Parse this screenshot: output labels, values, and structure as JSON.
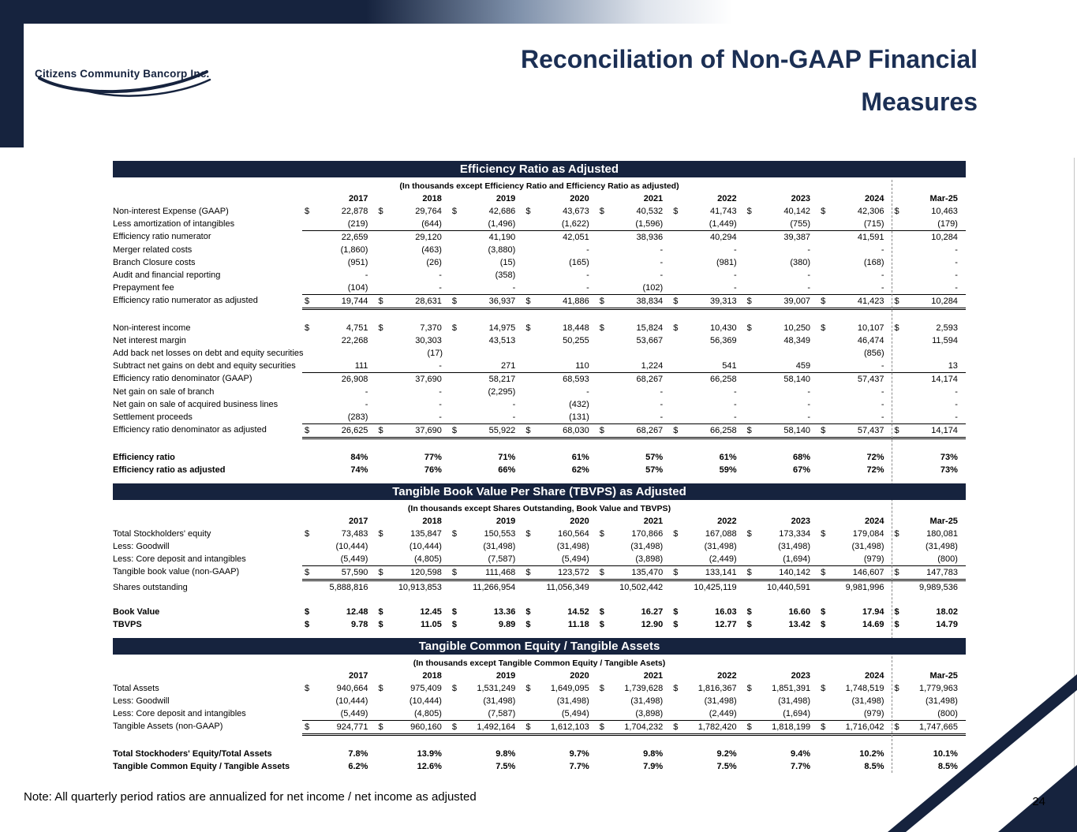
{
  "slide": {
    "logo_text": "Citizens Community Bancorp Inc.",
    "title_line1": "Reconciliation of Non-GAAP Financial",
    "title_line2": "Measures",
    "note": "Note: All quarterly period ratios are annualized for net income / net income as adjusted",
    "page_number": "24"
  },
  "colors": {
    "navy": "#16233E",
    "title_navy": "#1B2F54",
    "dash_gray": "#8A8A8A"
  },
  "tables": [
    {
      "title": "Efficiency Ratio as Adjusted",
      "subtitle": "(In thousands except Efficiency Ratio and Efficiency Ratio as adjusted)",
      "columns": [
        "2017",
        "2018",
        "2019",
        "2020",
        "2021",
        "2022",
        "2023",
        "2024",
        "Mar-25"
      ],
      "rows": [
        {
          "label": "Non-interest Expense (GAAP)",
          "dollar": true,
          "style": "plain",
          "values": [
            "22,878",
            "29,764",
            "42,686",
            "43,673",
            "40,532",
            "41,743",
            "40,142",
            "42,306",
            "10,463"
          ]
        },
        {
          "label": "Less amortization of intangibles",
          "style": "plain",
          "values": [
            "(219)",
            "(644)",
            "(1,496)",
            "(1,622)",
            "(1,596)",
            "(1,449)",
            "(755)",
            "(715)",
            "(179)"
          ]
        },
        {
          "label": "Efficiency ratio numerator",
          "style": "subtotal",
          "values": [
            "22,659",
            "29,120",
            "41,190",
            "42,051",
            "38,936",
            "40,294",
            "39,387",
            "41,591",
            "10,284"
          ]
        },
        {
          "label": "Merger related costs",
          "style": "plain",
          "values": [
            "(1,860)",
            "(463)",
            "(3,880)",
            "-",
            "-",
            "-",
            "-",
            "-",
            "-"
          ]
        },
        {
          "label": "Branch Closure costs",
          "style": "plain",
          "values": [
            "(951)",
            "(26)",
            "(15)",
            "(165)",
            "-",
            "(981)",
            "(380)",
            "(168)",
            "-"
          ]
        },
        {
          "label": "Audit and financial reporting",
          "style": "plain",
          "values": [
            "-",
            "-",
            "(358)",
            "-",
            "-",
            "-",
            "-",
            "-",
            "-"
          ]
        },
        {
          "label": "Prepayment fee",
          "style": "plain",
          "values": [
            "(104)",
            "-",
            "-",
            "-",
            "(102)",
            "-",
            "-",
            "-",
            "-"
          ]
        },
        {
          "label": "Efficiency ratio numerator as adjusted",
          "dollar": true,
          "style": "total",
          "values": [
            "19,744",
            "28,631",
            "36,937",
            "41,886",
            "38,834",
            "39,313",
            "39,007",
            "41,423",
            "10,284"
          ]
        },
        {
          "style": "spacer"
        },
        {
          "label": "Non-interest income",
          "dollar": true,
          "style": "plain",
          "values": [
            "4,751",
            "7,370",
            "14,975",
            "18,448",
            "15,824",
            "10,430",
            "10,250",
            "10,107",
            "2,593"
          ]
        },
        {
          "label": "Net interest margin",
          "style": "plain",
          "values": [
            "22,268",
            "30,303",
            "43,513",
            "50,255",
            "53,667",
            "56,369",
            "48,349",
            "46,474",
            "11,594"
          ]
        },
        {
          "label": "Add back net losses on debt and equity securities",
          "style": "plain",
          "values": [
            "",
            "(17)",
            "",
            "",
            "",
            "",
            "",
            "(856)",
            ""
          ]
        },
        {
          "label": "Subtract net gains on debt and equity securities",
          "style": "plain",
          "values": [
            "111",
            "-",
            "271",
            "110",
            "1,224",
            "541",
            "459",
            "-",
            "13"
          ]
        },
        {
          "label": "Efficiency ratio denominator (GAAP)",
          "style": "subtotal",
          "values": [
            "26,908",
            "37,690",
            "58,217",
            "68,593",
            "68,267",
            "66,258",
            "58,140",
            "57,437",
            "14,174"
          ]
        },
        {
          "label": "Net gain on sale of branch",
          "style": "plain",
          "values": [
            "-",
            "-",
            "(2,295)",
            "-",
            "-",
            "-",
            "-",
            "-",
            "-"
          ]
        },
        {
          "label": "Net gain on sale of acquired business lines",
          "style": "plain",
          "values": [
            "-",
            "-",
            "-",
            "(432)",
            "-",
            "-",
            "-",
            "-",
            "-"
          ]
        },
        {
          "label": "Settlement proceeds",
          "style": "plain",
          "values": [
            "(283)",
            "-",
            "-",
            "(131)",
            "-",
            "-",
            "-",
            "-",
            "-"
          ]
        },
        {
          "label": "Efficiency ratio denominator as adjusted",
          "dollar": true,
          "style": "total",
          "values": [
            "26,625",
            "37,690",
            "55,922",
            "68,030",
            "68,267",
            "66,258",
            "58,140",
            "57,437",
            "14,174"
          ]
        },
        {
          "style": "spacer"
        },
        {
          "label": "Efficiency ratio",
          "style": "bold",
          "values": [
            "84%",
            "77%",
            "71%",
            "61%",
            "57%",
            "61%",
            "68%",
            "72%",
            "73%"
          ]
        },
        {
          "label": "Efficiency ratio as adjusted",
          "style": "bold",
          "values": [
            "74%",
            "76%",
            "66%",
            "62%",
            "57%",
            "59%",
            "67%",
            "72%",
            "73%"
          ]
        }
      ]
    },
    {
      "title": "Tangible Book Value Per Share (TBVPS) as Adjusted",
      "subtitle": "(In thousands except Shares Outstanding, Book Value and TBVPS)",
      "columns": [
        "2017",
        "2018",
        "2019",
        "2020",
        "2021",
        "2022",
        "2023",
        "2024",
        "Mar-25"
      ],
      "rows": [
        {
          "label": "Total Stockholders' equity",
          "dollar": true,
          "style": "plain",
          "values": [
            "73,483",
            "135,847",
            "150,553",
            "160,564",
            "170,866",
            "167,088",
            "173,334",
            "179,084",
            "180,081"
          ]
        },
        {
          "label": "Less: Goodwill",
          "style": "plain",
          "values": [
            "(10,444)",
            "(10,444)",
            "(31,498)",
            "(31,498)",
            "(31,498)",
            "(31,498)",
            "(31,498)",
            "(31,498)",
            "(31,498)"
          ]
        },
        {
          "label": "Less: Core deposit and intangibles",
          "style": "plain",
          "values": [
            "(5,449)",
            "(4,805)",
            "(7,587)",
            "(5,494)",
            "(3,898)",
            "(2,449)",
            "(1,694)",
            "(979)",
            "(800)"
          ]
        },
        {
          "label": "Tangible book value (non-GAAP)",
          "dollar": true,
          "style": "total",
          "values": [
            "57,590",
            "120,598",
            "111,468",
            "123,572",
            "135,470",
            "133,141",
            "140,142",
            "146,607",
            "147,783"
          ]
        },
        {
          "label": "Shares outstanding",
          "style": "plain",
          "values": [
            "5,888,816",
            "10,913,853",
            "11,266,954",
            "11,056,349",
            "10,502,442",
            "10,425,119",
            "10,440,591",
            "9,981,996",
            "9,989,536"
          ]
        },
        {
          "style": "spacer"
        },
        {
          "label": "Book Value",
          "dollar": true,
          "style": "bold",
          "values": [
            "12.48",
            "12.45",
            "13.36",
            "14.52",
            "16.27",
            "16.03",
            "16.60",
            "17.94",
            "18.02"
          ]
        },
        {
          "label": "TBVPS",
          "dollar": true,
          "style": "bold",
          "values": [
            "9.78",
            "11.05",
            "9.89",
            "11.18",
            "12.90",
            "12.77",
            "13.42",
            "14.69",
            "14.79"
          ]
        }
      ]
    },
    {
      "title": "Tangible Common Equity / Tangible Assets",
      "subtitle": "(In thousands except Tangible Common Equity / Tangible Asets)",
      "columns": [
        "2017",
        "2018",
        "2019",
        "2020",
        "2021",
        "2022",
        "2023",
        "2024",
        "Mar-25"
      ],
      "rows": [
        {
          "label": "Total Assets",
          "dollar": true,
          "style": "plain",
          "values": [
            "940,664",
            "975,409",
            "1,531,249",
            "1,649,095",
            "1,739,628",
            "1,816,367",
            "1,851,391",
            "1,748,519",
            "1,779,963"
          ]
        },
        {
          "label": "Less: Goodwill",
          "style": "plain",
          "values": [
            "(10,444)",
            "(10,444)",
            "(31,498)",
            "(31,498)",
            "(31,498)",
            "(31,498)",
            "(31,498)",
            "(31,498)",
            "(31,498)"
          ]
        },
        {
          "label": "Less: Core deposit and intangibles",
          "style": "plain",
          "values": [
            "(5,449)",
            "(4,805)",
            "(7,587)",
            "(5,494)",
            "(3,898)",
            "(2,449)",
            "(1,694)",
            "(979)",
            "(800)"
          ]
        },
        {
          "label": "Tangible Assets (non-GAAP)",
          "dollar": true,
          "style": "total",
          "values": [
            "924,771",
            "960,160",
            "1,492,164",
            "1,612,103",
            "1,704,232",
            "1,782,420",
            "1,818,199",
            "1,716,042",
            "1,747,665"
          ]
        },
        {
          "style": "spacer"
        },
        {
          "label": "Total Stockhoders' Equity/Total Assets",
          "style": "bold",
          "values": [
            "7.8%",
            "13.9%",
            "9.8%",
            "9.7%",
            "9.8%",
            "9.2%",
            "9.4%",
            "10.2%",
            "10.1%"
          ]
        },
        {
          "label": "Tangible Common Equity / Tangible Assets",
          "style": "bold",
          "values": [
            "6.2%",
            "12.6%",
            "7.5%",
            "7.7%",
            "7.9%",
            "7.5%",
            "7.7%",
            "8.5%",
            "8.5%"
          ]
        }
      ]
    }
  ]
}
